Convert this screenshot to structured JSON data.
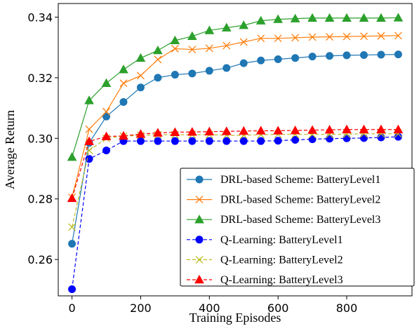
{
  "chart_data": {
    "type": "line",
    "xlabel": "Training Episodes",
    "ylabel": "Average Return",
    "xlim": [
      -40,
      990
    ],
    "ylim": [
      0.248,
      0.3445
    ],
    "xticks": [
      0,
      200,
      400,
      600,
      800
    ],
    "xtick_labels": [
      "0",
      "200",
      "400",
      "600",
      "800"
    ],
    "yticks": [
      0.26,
      0.28,
      0.3,
      0.32,
      0.34
    ],
    "ytick_labels": [
      "0.26",
      "0.28",
      "0.30",
      "0.32",
      "0.34"
    ],
    "grid": false,
    "legend_position": "lower-right",
    "x": [
      0,
      50,
      100,
      150,
      200,
      250,
      300,
      350,
      400,
      450,
      500,
      550,
      600,
      650,
      700,
      750,
      800,
      850,
      900,
      950
    ],
    "series": [
      {
        "name": "DRL-based Scheme: BatteryLevel1",
        "color": "#1f77b4",
        "marker": "circle",
        "line": "solid",
        "values": [
          0.2652,
          0.2985,
          0.3072,
          0.312,
          0.3168,
          0.32,
          0.321,
          0.3214,
          0.3223,
          0.3232,
          0.3248,
          0.3257,
          0.3261,
          0.3265,
          0.327,
          0.3272,
          0.3274,
          0.3275,
          0.3276,
          0.3277
        ]
      },
      {
        "name": "DRL-based Scheme: BatteryLevel2",
        "color": "#ff7f0e",
        "marker": "x",
        "line": "solid",
        "values": [
          0.2805,
          0.303,
          0.3088,
          0.3182,
          0.3207,
          0.326,
          0.3296,
          0.3293,
          0.3297,
          0.3306,
          0.3318,
          0.333,
          0.333,
          0.3332,
          0.3334,
          0.3335,
          0.3336,
          0.3337,
          0.3338,
          0.3339
        ]
      },
      {
        "name": "DRL-based Scheme: BatteryLevel3",
        "color": "#2ca02c",
        "marker": "triangle",
        "line": "solid",
        "values": [
          0.2938,
          0.3125,
          0.3182,
          0.3227,
          0.3265,
          0.329,
          0.3323,
          0.3337,
          0.3356,
          0.3365,
          0.3373,
          0.3388,
          0.3393,
          0.3395,
          0.3397,
          0.3397,
          0.3397,
          0.3397,
          0.3397,
          0.3398
        ]
      },
      {
        "name": "Q-Learning: BatteryLevel1",
        "color": "#0000ff",
        "marker": "circle",
        "line": "dashed",
        "values": [
          0.2502,
          0.2932,
          0.296,
          0.2991,
          0.2991,
          0.2991,
          0.2991,
          0.2991,
          0.2991,
          0.2991,
          0.2991,
          0.2991,
          0.2992,
          0.2995,
          0.2997,
          0.2999,
          0.3,
          0.3001,
          0.3003,
          0.3005
        ]
      },
      {
        "name": "Q-Learning: BatteryLevel2",
        "color": "#bcbd22",
        "marker": "x",
        "line": "dashed",
        "values": [
          0.2707,
          0.296,
          0.3,
          0.3007,
          0.301,
          0.3012,
          0.3012,
          0.3012,
          0.3012,
          0.301,
          0.301,
          0.3012,
          0.3013,
          0.3013,
          0.3013,
          0.3013,
          0.3014,
          0.3015,
          0.3015,
          0.3015
        ]
      },
      {
        "name": "Q-Learning: BatteryLevel3",
        "color": "#ff0000",
        "marker": "triangle",
        "line": "dashed",
        "values": [
          0.2802,
          0.299,
          0.3006,
          0.3008,
          0.3014,
          0.3018,
          0.302,
          0.3021,
          0.3022,
          0.3023,
          0.3024,
          0.3025,
          0.3025,
          0.3026,
          0.3027,
          0.3028,
          0.3029,
          0.3029,
          0.3029,
          0.3029
        ]
      }
    ]
  }
}
